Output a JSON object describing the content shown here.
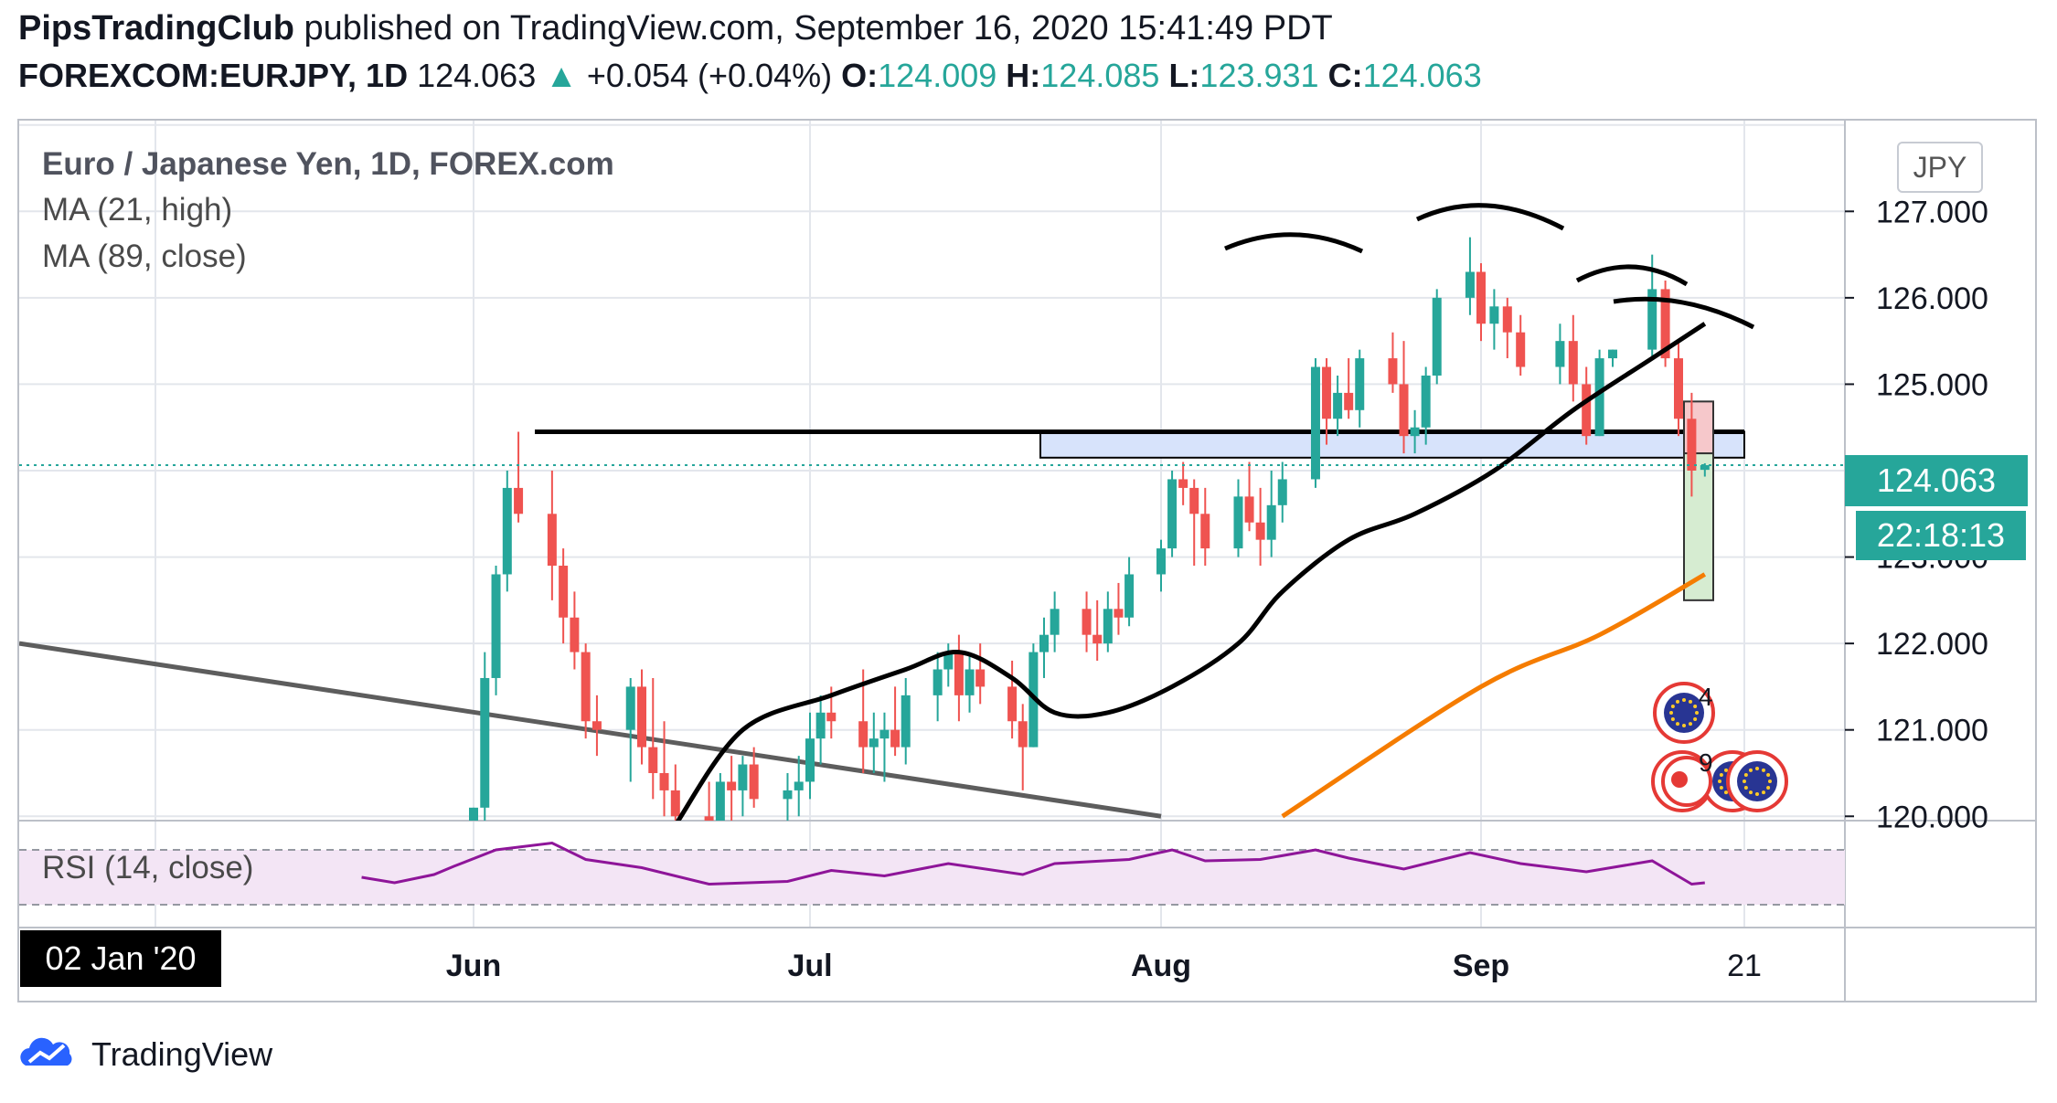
{
  "header": {
    "publisher": "PipsTradingClub",
    "published_text": "published on TradingView.com, September 16, 2020 15:41:49 PDT",
    "symbol": "FOREXCOM:EURJPY, 1D",
    "last": "124.063",
    "change": "+0.054 (+0.04%)",
    "o_label": "O:",
    "o": "124.009",
    "h_label": "H:",
    "h": "124.085",
    "l_label": "L:",
    "l": "123.931",
    "c_label": "C:",
    "c": "124.063"
  },
  "legend": {
    "title": "Euro / Japanese Yen, 1D, FOREX.com",
    "ma21": "MA (21, high)",
    "ma89": "MA (89, close)",
    "rsi": "RSI (14, close)"
  },
  "badges": {
    "currency": "JPY",
    "price": "124.063",
    "timer": "22:18:13",
    "date": "02 Jan '20",
    "event_count_1": "4",
    "event_count_2": "9"
  },
  "footer": {
    "brand": "TradingView"
  },
  "colors": {
    "up": "#26a69a",
    "down": "#ef5350",
    "ma21": "#000000",
    "ma89": "#f57c00",
    "rsi": "#8e1599",
    "rsi_band": "#f3e5f5"
  },
  "chart_data": {
    "type": "candlestick",
    "x_tick_labels": [
      "Jun",
      "Jul",
      "Aug",
      "Sep",
      "21"
    ],
    "y_tick_labels": [
      "127.000",
      "126.000",
      "125.000",
      "123.000",
      "122.000",
      "121.000",
      "120.000"
    ],
    "ylim": [
      119.95,
      128.05
    ],
    "candles": [
      {
        "date": "2020-06-01",
        "o": 118.6,
        "h": 120.1,
        "l": 118.3,
        "c": 120.1
      },
      {
        "date": "2020-06-02",
        "o": 120.1,
        "h": 121.9,
        "l": 119.9,
        "c": 121.6
      },
      {
        "date": "2020-06-03",
        "o": 121.6,
        "h": 122.9,
        "l": 121.4,
        "c": 122.8
      },
      {
        "date": "2020-06-04",
        "o": 122.8,
        "h": 124.0,
        "l": 122.6,
        "c": 123.8
      },
      {
        "date": "2020-06-05",
        "o": 123.8,
        "h": 124.45,
        "l": 123.4,
        "c": 123.5
      },
      {
        "date": "2020-06-08",
        "o": 123.5,
        "h": 124.0,
        "l": 122.5,
        "c": 122.9
      },
      {
        "date": "2020-06-09",
        "o": 122.9,
        "h": 123.1,
        "l": 122.0,
        "c": 122.3
      },
      {
        "date": "2020-06-10",
        "o": 122.3,
        "h": 122.6,
        "l": 121.7,
        "c": 121.9
      },
      {
        "date": "2020-06-11",
        "o": 121.9,
        "h": 122.0,
        "l": 120.9,
        "c": 121.1
      },
      {
        "date": "2020-06-12",
        "o": 121.1,
        "h": 121.4,
        "l": 120.7,
        "c": 121.0
      },
      {
        "date": "2020-06-15",
        "o": 121.0,
        "h": 121.6,
        "l": 120.4,
        "c": 121.5
      },
      {
        "date": "2020-06-16",
        "o": 121.5,
        "h": 121.7,
        "l": 120.6,
        "c": 120.8
      },
      {
        "date": "2020-06-17",
        "o": 120.8,
        "h": 121.6,
        "l": 120.2,
        "c": 120.5
      },
      {
        "date": "2020-06-18",
        "o": 120.5,
        "h": 121.1,
        "l": 120.0,
        "c": 120.3
      },
      {
        "date": "2020-06-19",
        "o": 120.3,
        "h": 120.6,
        "l": 119.8,
        "c": 120.0
      },
      {
        "date": "2020-06-22",
        "o": 120.0,
        "h": 120.4,
        "l": 119.6,
        "c": 119.8
      },
      {
        "date": "2020-06-23",
        "o": 119.8,
        "h": 120.5,
        "l": 119.5,
        "c": 120.4
      },
      {
        "date": "2020-06-24",
        "o": 120.4,
        "h": 120.7,
        "l": 119.9,
        "c": 120.3
      },
      {
        "date": "2020-06-25",
        "o": 120.3,
        "h": 120.7,
        "l": 120.0,
        "c": 120.6
      },
      {
        "date": "2020-06-26",
        "o": 120.6,
        "h": 120.8,
        "l": 120.1,
        "c": 120.2
      },
      {
        "date": "2020-06-29",
        "o": 120.2,
        "h": 120.5,
        "l": 119.9,
        "c": 120.3
      },
      {
        "date": "2020-06-30",
        "o": 120.3,
        "h": 120.7,
        "l": 120.0,
        "c": 120.4
      },
      {
        "date": "2020-07-01",
        "o": 120.4,
        "h": 121.2,
        "l": 120.2,
        "c": 120.9
      },
      {
        "date": "2020-07-02",
        "o": 120.9,
        "h": 121.4,
        "l": 120.6,
        "c": 121.2
      },
      {
        "date": "2020-07-03",
        "o": 121.2,
        "h": 121.5,
        "l": 120.9,
        "c": 121.1
      },
      {
        "date": "2020-07-06",
        "o": 121.1,
        "h": 121.7,
        "l": 120.5,
        "c": 120.8
      },
      {
        "date": "2020-07-07",
        "o": 120.8,
        "h": 121.2,
        "l": 120.5,
        "c": 120.9
      },
      {
        "date": "2020-07-08",
        "o": 120.9,
        "h": 121.2,
        "l": 120.4,
        "c": 121.0
      },
      {
        "date": "2020-07-09",
        "o": 121.0,
        "h": 121.5,
        "l": 120.7,
        "c": 120.8
      },
      {
        "date": "2020-07-10",
        "o": 120.8,
        "h": 121.6,
        "l": 120.6,
        "c": 121.4
      },
      {
        "date": "2020-07-13",
        "o": 121.4,
        "h": 121.9,
        "l": 121.1,
        "c": 121.7
      },
      {
        "date": "2020-07-14",
        "o": 121.7,
        "h": 122.0,
        "l": 121.5,
        "c": 121.9
      },
      {
        "date": "2020-07-15",
        "o": 121.9,
        "h": 122.1,
        "l": 121.1,
        "c": 121.4
      },
      {
        "date": "2020-07-16",
        "o": 121.4,
        "h": 121.9,
        "l": 121.2,
        "c": 121.7
      },
      {
        "date": "2020-07-17",
        "o": 121.7,
        "h": 122.0,
        "l": 121.3,
        "c": 121.5
      },
      {
        "date": "2020-07-20",
        "o": 121.5,
        "h": 121.8,
        "l": 120.9,
        "c": 121.1
      },
      {
        "date": "2020-07-21",
        "o": 121.1,
        "h": 121.3,
        "l": 120.3,
        "c": 120.8
      },
      {
        "date": "2020-07-22",
        "o": 120.8,
        "h": 122.0,
        "l": 120.8,
        "c": 121.9
      },
      {
        "date": "2020-07-23",
        "o": 121.9,
        "h": 122.3,
        "l": 121.6,
        "c": 122.1
      },
      {
        "date": "2020-07-24",
        "o": 122.1,
        "h": 122.6,
        "l": 121.9,
        "c": 122.4
      },
      {
        "date": "2020-07-27",
        "o": 122.4,
        "h": 122.6,
        "l": 121.9,
        "c": 122.1
      },
      {
        "date": "2020-07-28",
        "o": 122.1,
        "h": 122.5,
        "l": 121.8,
        "c": 122.0
      },
      {
        "date": "2020-07-29",
        "o": 122.0,
        "h": 122.6,
        "l": 121.9,
        "c": 122.4
      },
      {
        "date": "2020-07-30",
        "o": 122.4,
        "h": 122.7,
        "l": 122.1,
        "c": 122.3
      },
      {
        "date": "2020-07-31",
        "o": 122.3,
        "h": 123.0,
        "l": 122.2,
        "c": 122.8
      },
      {
        "date": "2020-08-03",
        "o": 122.8,
        "h": 123.2,
        "l": 122.6,
        "c": 123.1
      },
      {
        "date": "2020-08-04",
        "o": 123.1,
        "h": 124.0,
        "l": 123.0,
        "c": 123.9
      },
      {
        "date": "2020-08-05",
        "o": 123.9,
        "h": 124.1,
        "l": 123.6,
        "c": 123.8
      },
      {
        "date": "2020-08-06",
        "o": 123.8,
        "h": 123.9,
        "l": 122.9,
        "c": 123.5
      },
      {
        "date": "2020-08-07",
        "o": 123.5,
        "h": 123.8,
        "l": 122.9,
        "c": 123.1
      },
      {
        "date": "2020-08-10",
        "o": 123.1,
        "h": 123.9,
        "l": 123.0,
        "c": 123.7
      },
      {
        "date": "2020-08-11",
        "o": 123.7,
        "h": 124.1,
        "l": 123.3,
        "c": 123.4
      },
      {
        "date": "2020-08-12",
        "o": 123.4,
        "h": 123.8,
        "l": 122.9,
        "c": 123.2
      },
      {
        "date": "2020-08-13",
        "o": 123.2,
        "h": 124.0,
        "l": 123.0,
        "c": 123.6
      },
      {
        "date": "2020-08-14",
        "o": 123.6,
        "h": 124.1,
        "l": 123.4,
        "c": 123.9
      },
      {
        "date": "2020-08-17",
        "o": 123.9,
        "h": 125.3,
        "l": 123.8,
        "c": 125.2
      },
      {
        "date": "2020-08-18",
        "o": 125.2,
        "h": 125.3,
        "l": 124.3,
        "c": 124.6
      },
      {
        "date": "2020-08-19",
        "o": 124.6,
        "h": 125.1,
        "l": 124.4,
        "c": 124.9
      },
      {
        "date": "2020-08-20",
        "o": 124.9,
        "h": 125.3,
        "l": 124.6,
        "c": 124.7
      },
      {
        "date": "2020-08-21",
        "o": 124.7,
        "h": 125.4,
        "l": 124.5,
        "c": 125.3
      },
      {
        "date": "2020-08-24",
        "o": 125.3,
        "h": 125.6,
        "l": 124.9,
        "c": 125.0
      },
      {
        "date": "2020-08-25",
        "o": 125.0,
        "h": 125.5,
        "l": 124.2,
        "c": 124.4
      },
      {
        "date": "2020-08-26",
        "o": 124.4,
        "h": 124.7,
        "l": 124.2,
        "c": 124.5
      },
      {
        "date": "2020-08-27",
        "o": 124.5,
        "h": 125.2,
        "l": 124.3,
        "c": 125.1
      },
      {
        "date": "2020-08-28",
        "o": 125.1,
        "h": 126.1,
        "l": 125.0,
        "c": 126.0
      },
      {
        "date": "2020-08-31",
        "o": 126.0,
        "h": 126.7,
        "l": 125.8,
        "c": 126.3
      },
      {
        "date": "2020-09-01",
        "o": 126.3,
        "h": 126.4,
        "l": 125.5,
        "c": 125.7
      },
      {
        "date": "2020-09-02",
        "o": 125.7,
        "h": 126.1,
        "l": 125.4,
        "c": 125.9
      },
      {
        "date": "2020-09-03",
        "o": 125.9,
        "h": 126.0,
        "l": 125.3,
        "c": 125.6
      },
      {
        "date": "2020-09-04",
        "o": 125.6,
        "h": 125.8,
        "l": 125.1,
        "c": 125.2
      },
      {
        "date": "2020-09-07",
        "o": 125.2,
        "h": 125.7,
        "l": 125.0,
        "c": 125.5
      },
      {
        "date": "2020-09-08",
        "o": 125.5,
        "h": 125.8,
        "l": 124.8,
        "c": 125.0
      },
      {
        "date": "2020-09-09",
        "o": 125.0,
        "h": 125.2,
        "l": 124.3,
        "c": 124.4
      },
      {
        "date": "2020-09-10",
        "o": 124.4,
        "h": 125.4,
        "l": 124.4,
        "c": 125.3
      },
      {
        "date": "2020-09-11",
        "o": 125.3,
        "h": 125.4,
        "l": 125.2,
        "c": 125.4
      },
      {
        "date": "2020-09-14",
        "o": 125.4,
        "h": 126.5,
        "l": 125.3,
        "c": 126.1
      },
      {
        "date": "2020-09-15",
        "o": 126.1,
        "h": 126.2,
        "l": 125.2,
        "c": 125.3
      },
      {
        "date": "2020-09-16",
        "o": 125.3,
        "h": 125.5,
        "l": 124.4,
        "c": 124.6
      },
      {
        "date": "2020-09-17",
        "o": 124.6,
        "h": 124.9,
        "l": 123.7,
        "c": 124.0
      },
      {
        "date": "2020-09-18",
        "o": 124.009,
        "h": 124.085,
        "l": 123.931,
        "c": 124.063
      }
    ],
    "ma21_high": [
      [
        "2020-06-19",
        119.9
      ],
      [
        "2020-06-25",
        121.0
      ],
      [
        "2020-07-03",
        121.4
      ],
      [
        "2020-07-10",
        121.7
      ],
      [
        "2020-07-15",
        121.9
      ],
      [
        "2020-07-20",
        121.6
      ],
      [
        "2020-07-24",
        121.2
      ],
      [
        "2020-07-29",
        121.2
      ],
      [
        "2020-08-04",
        121.5
      ],
      [
        "2020-08-10",
        122.0
      ],
      [
        "2020-08-14",
        122.6
      ],
      [
        "2020-08-20",
        123.2
      ],
      [
        "2020-08-26",
        123.5
      ],
      [
        "2020-09-02",
        124.0
      ],
      [
        "2020-09-08",
        124.7
      ],
      [
        "2020-09-14",
        125.3
      ],
      [
        "2020-09-18",
        125.7
      ]
    ],
    "ma89_close": [
      [
        "2020-08-14",
        120.0
      ],
      [
        "2020-09-01",
        121.5
      ],
      [
        "2020-09-10",
        122.1
      ],
      [
        "2020-09-18",
        122.8
      ]
    ],
    "rsi": [
      [
        "2020-05-15",
        50
      ],
      [
        "2020-05-20",
        46
      ],
      [
        "2020-05-26",
        52
      ],
      [
        "2020-05-29",
        58
      ],
      [
        "2020-06-03",
        70
      ],
      [
        "2020-06-08",
        75
      ],
      [
        "2020-06-11",
        63
      ],
      [
        "2020-06-16",
        57
      ],
      [
        "2020-06-22",
        45
      ],
      [
        "2020-06-29",
        47
      ],
      [
        "2020-07-03",
        55
      ],
      [
        "2020-07-08",
        51
      ],
      [
        "2020-07-14",
        60
      ],
      [
        "2020-07-21",
        52
      ],
      [
        "2020-07-24",
        60
      ],
      [
        "2020-07-31",
        63
      ],
      [
        "2020-08-04",
        70
      ],
      [
        "2020-08-07",
        62
      ],
      [
        "2020-08-12",
        63
      ],
      [
        "2020-08-17",
        70
      ],
      [
        "2020-08-20",
        64
      ],
      [
        "2020-08-25",
        56
      ],
      [
        "2020-08-31",
        68
      ],
      [
        "2020-09-04",
        60
      ],
      [
        "2020-09-09",
        54
      ],
      [
        "2020-09-14",
        62
      ],
      [
        "2020-09-17",
        45
      ],
      [
        "2020-09-18",
        46
      ]
    ],
    "rsi_band": [
      30,
      70
    ],
    "drawings": {
      "resistance_top": 124.45,
      "support_zone": [
        124.15,
        124.45
      ],
      "trendline": [
        [
          "2020-03-24",
          122.0
        ],
        [
          "2020-08-03",
          120.0
        ]
      ],
      "short_position": {
        "entry": 124.2,
        "stop": 124.8,
        "target": 122.5
      },
      "head_shoulders_arcs": 3
    }
  }
}
